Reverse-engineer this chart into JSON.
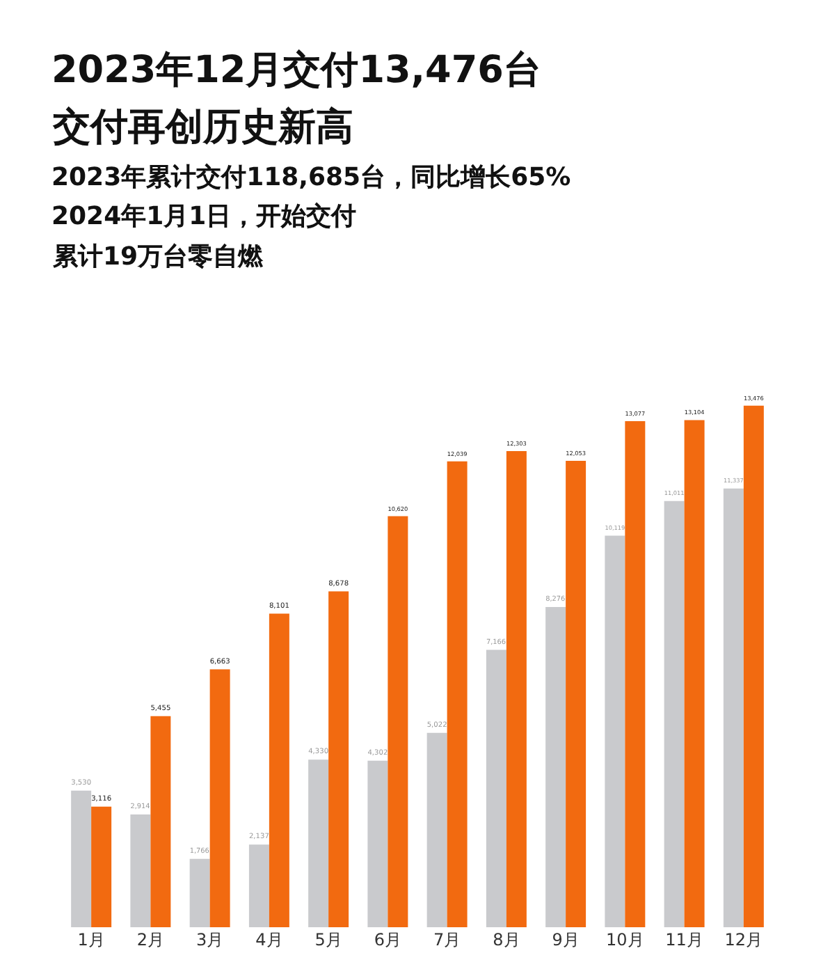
{
  "chart_data": {
    "type": "bar",
    "title": "2023年12月交付13,476台",
    "subtitle": "交付再创历史新高",
    "annotations": [
      "2023年累计交付118,685台，同比增长65%",
      "2024年1月1日，开始交付",
      "累计19万台零自燃"
    ],
    "categories": [
      "1月",
      "2月",
      "3月",
      "4月",
      "5月",
      "6月",
      "7月",
      "8月",
      "9月",
      "10月",
      "11月",
      "12月"
    ],
    "series": [
      {
        "color": "#c9cacd",
        "values": [
          3530,
          2914,
          1766,
          2137,
          4330,
          4302,
          5022,
          7166,
          8276,
          10119,
          11011,
          11337
        ],
        "value_labels": [
          "3,530",
          "2,914",
          "1,766",
          "2,137",
          "4,330",
          "4,302",
          "5,022",
          "7,166",
          "8,276",
          "10,119",
          "11,011",
          "11,337"
        ]
      },
      {
        "color": "#f26a10",
        "values": [
          3116,
          5455,
          6663,
          8101,
          8678,
          10620,
          12039,
          12303,
          12053,
          13077,
          13104,
          13476
        ],
        "value_labels": [
          "3,116",
          "5,455",
          "6,663",
          "8,101",
          "8,678",
          "10,620",
          "12,039",
          "12,303",
          "12,053",
          "13,077",
          "13,104",
          "13,476"
        ]
      }
    ],
    "tick_labels": "x",
    "legend": false
  }
}
